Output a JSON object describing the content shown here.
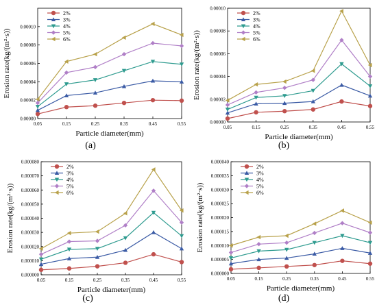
{
  "colors": {
    "2%": "#c0504d",
    "3%": "#3b5ba5",
    "4%": "#2e9b8f",
    "5%": "#b07fc7",
    "6%": "#b8a14a"
  },
  "chart_data": [
    {
      "type": "line",
      "panel_label": "(a)",
      "xlabel": "Particle diameter(mm)",
      "ylabel": "Erosion rate(kg/(m²·s))",
      "x": [
        0.05,
        0.15,
        0.25,
        0.35,
        0.45,
        0.55
      ],
      "x_ticks": [
        "0.05",
        "0.15",
        "0.25",
        "0.35",
        "0.45",
        "0.55"
      ],
      "ylim": [
        0,
        0.00012
      ],
      "y_ticks": [
        "0.00000",
        "0.00002",
        "0.00004",
        "0.00006",
        "0.00008",
        "0.00010"
      ],
      "y_tick_values": [
        0,
        2e-05,
        4e-05,
        6e-05,
        8e-05,
        0.0001
      ],
      "legend": "top-left",
      "series": [
        {
          "name": "2%",
          "marker": "circle",
          "values": [
            5e-06,
            1.25e-05,
            1.4e-05,
            1.7e-05,
            2e-05,
            1.95e-05
          ]
        },
        {
          "name": "3%",
          "marker": "triangle-up",
          "values": [
            9e-06,
            2.5e-05,
            2.8e-05,
            3.5e-05,
            4.1e-05,
            4e-05
          ]
        },
        {
          "name": "4%",
          "marker": "triangle-down",
          "values": [
            1.3e-05,
            3.75e-05,
            4.2e-05,
            5.2e-05,
            6.2e-05,
            5.9e-05
          ]
        },
        {
          "name": "5%",
          "marker": "diamond",
          "values": [
            1.7e-05,
            5e-05,
            5.6e-05,
            7e-05,
            8.2e-05,
            7.9e-05
          ]
        },
        {
          "name": "6%",
          "marker": "triangle-left",
          "values": [
            2.1e-05,
            6.2e-05,
            7e-05,
            8.8e-05,
            0.000103,
            9.1e-05
          ]
        }
      ]
    },
    {
      "type": "line",
      "panel_label": "(b)",
      "xlabel": "Particle diameter(mm)",
      "ylabel": "Erosion rate(kg/(m²·s))",
      "x": [
        0.05,
        0.15,
        0.25,
        0.35,
        0.45,
        0.55
      ],
      "x_ticks": [
        "0.05",
        "0.15",
        "0.25",
        "0.35",
        "0.45",
        "0.55"
      ],
      "ylim": [
        0,
        0.0001
      ],
      "y_ticks": [
        "0.00000",
        "0.00002",
        "0.00004",
        "0.00006",
        "0.00008",
        "0.00010"
      ],
      "y_tick_values": [
        0,
        2e-05,
        4e-05,
        6e-05,
        8e-05,
        0.0001
      ],
      "legend": "top-left",
      "series": [
        {
          "name": "2%",
          "marker": "circle",
          "values": [
            3e-06,
            8.5e-06,
            9.5e-06,
            1.1e-05,
            1.8e-05,
            1.4e-05
          ]
        },
        {
          "name": "3%",
          "marker": "triangle-up",
          "values": [
            8e-06,
            1.6e-05,
            1.65e-05,
            1.8e-05,
            3.25e-05,
            2.3e-05
          ]
        },
        {
          "name": "4%",
          "marker": "triangle-down",
          "values": [
            1.1e-05,
            2.15e-05,
            2.3e-05,
            2.75e-05,
            5.1e-05,
            3.15e-05
          ]
        },
        {
          "name": "5%",
          "marker": "diamond",
          "values": [
            1.5e-05,
            2.6e-05,
            3e-05,
            3.7e-05,
            7.2e-05,
            4e-05
          ]
        },
        {
          "name": "6%",
          "marker": "triangle-left",
          "values": [
            1.9e-05,
            3.3e-05,
            3.55e-05,
            4.5e-05,
            9.75e-05,
            5e-05
          ]
        }
      ]
    },
    {
      "type": "line",
      "panel_label": "(c)",
      "xlabel": "Particle diameter(mm)",
      "ylabel": "Erosion rate(kg/(m²·s))",
      "x": [
        0.05,
        0.15,
        0.25,
        0.35,
        0.45,
        0.55
      ],
      "x_ticks": [
        "0.05",
        "0.15",
        "0.25",
        "0.35",
        "0.45",
        "0.55"
      ],
      "ylim": [
        0,
        8e-05
      ],
      "y_ticks": [
        "0.000000",
        "0.000010",
        "0.000020",
        "0.000030",
        "0.000040",
        "0.000050",
        "0.000060",
        "0.000070",
        "0.000080"
      ],
      "y_tick_values": [
        0,
        1e-05,
        2e-05,
        3e-05,
        4e-05,
        5e-05,
        6e-05,
        7e-05,
        8e-05
      ],
      "legend": "top-left",
      "series": [
        {
          "name": "2%",
          "marker": "circle",
          "values": [
            3.5e-06,
            4.5e-06,
            6e-06,
            8.5e-06,
            1.45e-05,
            9e-06
          ]
        },
        {
          "name": "3%",
          "marker": "triangle-up",
          "values": [
            7.5e-06,
            1.15e-05,
            1.25e-05,
            1.75e-05,
            3e-05,
            1.85e-05
          ]
        },
        {
          "name": "4%",
          "marker": "triangle-down",
          "values": [
            1.1e-05,
            1.8e-05,
            1.85e-05,
            2.6e-05,
            4.4e-05,
            2.75e-05
          ]
        },
        {
          "name": "5%",
          "marker": "diamond",
          "values": [
            1.45e-05,
            2.35e-05,
            2.4e-05,
            3.5e-05,
            5.95e-05,
            3.7e-05
          ]
        },
        {
          "name": "6%",
          "marker": "triangle-left",
          "values": [
            1.85e-05,
            2.95e-05,
            3.05e-05,
            4.35e-05,
            7.45e-05,
            4.55e-05
          ]
        }
      ]
    },
    {
      "type": "line",
      "panel_label": "(d)",
      "xlabel": "Particle diameter(mm)",
      "ylabel": "Erosion rate(kg/(m²·s))",
      "x": [
        0.05,
        0.15,
        0.25,
        0.35,
        0.45,
        0.55
      ],
      "x_ticks": [
        "0.05",
        "0.15",
        "0.25",
        "0.35",
        "0.45",
        "0.55"
      ],
      "ylim": [
        0,
        4e-05
      ],
      "y_ticks": [
        "0.000000",
        "0.000005",
        "0.000010",
        "0.000015",
        "0.000020",
        "0.000025",
        "0.000030",
        "0.000035",
        "0.000040"
      ],
      "y_tick_values": [
        0,
        5e-06,
        1e-05,
        1.5e-05,
        2e-05,
        2.5e-05,
        3e-05,
        3.5e-05,
        4e-05
      ],
      "legend": "top-left",
      "series": [
        {
          "name": "2%",
          "marker": "circle",
          "values": [
            1.5e-06,
            2e-06,
            2.5e-06,
            3e-06,
            4.5e-06,
            3.5e-06
          ]
        },
        {
          "name": "3%",
          "marker": "triangle-up",
          "values": [
            3.5e-06,
            5e-06,
            5.5e-06,
            7e-06,
            9e-06,
            7.3e-06
          ]
        },
        {
          "name": "4%",
          "marker": "triangle-down",
          "values": [
            5.5e-06,
            8e-06,
            8.5e-06,
            1.1e-05,
            1.35e-05,
            1.1e-05
          ]
        },
        {
          "name": "5%",
          "marker": "diamond",
          "values": [
            7.5e-06,
            1.05e-05,
            1.1e-05,
            1.45e-05,
            1.8e-05,
            1.46e-05
          ]
        },
        {
          "name": "6%",
          "marker": "triangle-left",
          "values": [
            1e-05,
            1.3e-05,
            1.35e-05,
            1.78e-05,
            2.25e-05,
            1.82e-05
          ]
        }
      ]
    }
  ]
}
